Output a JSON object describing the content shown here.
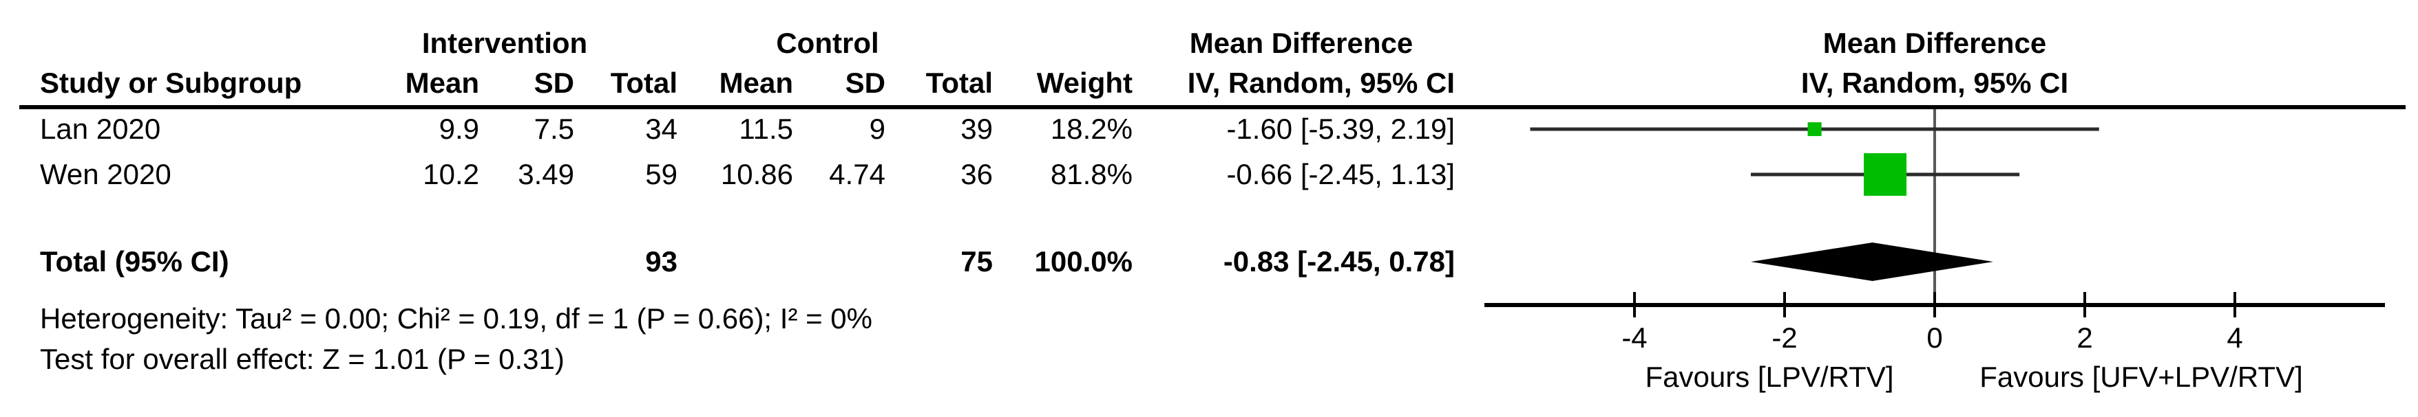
{
  "header": {
    "group_intervention": "Intervention",
    "group_control": "Control",
    "group_mean_difference": "Mean Difference",
    "col_study": "Study or Subgroup",
    "col_mean_i": "Mean",
    "col_sd_i": "SD",
    "col_total_i": "Total",
    "col_mean_c": "Mean",
    "col_sd_c": "SD",
    "col_total_c": "Total",
    "col_weight": "Weight",
    "col_ci": "IV, Random, 95% CI",
    "plot_title": "Mean Difference",
    "plot_subtitle": "IV, Random, 95% CI"
  },
  "table": {
    "rows": [
      {
        "study": "Lan 2020",
        "i_mean": "9.9",
        "i_sd": "7.5",
        "i_total": "34",
        "c_mean": "11.5",
        "c_sd": "9",
        "c_total": "39",
        "weight": "18.2%",
        "ci_text": "-1.60 [-5.39, 2.19]"
      },
      {
        "study": "Wen 2020",
        "i_mean": "10.2",
        "i_sd": "3.49",
        "i_total": "59",
        "c_mean": "10.86",
        "c_sd": "4.74",
        "c_total": "36",
        "weight": "81.8%",
        "ci_text": "-0.66 [-2.45, 1.13]"
      }
    ],
    "total_row": {
      "label": "Total (95% CI)",
      "i_total": "93",
      "c_total": "75",
      "weight": "100.0%",
      "ci_text": "-0.83 [-2.45, 0.78]"
    },
    "heterogeneity_text": "Heterogeneity: Tau² = 0.00; Chi² = 0.19, df = 1 (P = 0.66); I² = 0%",
    "overall_effect_text": "Test for overall effect: Z = 1.01 (P = 0.31)"
  },
  "chart_data": {
    "type": "scatter",
    "subtype": "forest-plot-mean-difference",
    "title": "Mean Difference",
    "subtitle": "IV, Random, 95% CI",
    "xlim": [
      -6,
      6
    ],
    "xticks": [
      -4,
      -2,
      0,
      2,
      4
    ],
    "x_axis_note_left": "Favours [LPV/RTV]",
    "x_axis_note_right": "Favours [UFV+LPV/RTV]",
    "marker_color": "#00bd00",
    "line_color": "#2b2b2b",
    "zero_line_color": "#595959",
    "studies": [
      {
        "name": "Lan 2020",
        "mean_difference": -1.6,
        "ci_low": -5.39,
        "ci_high": 2.19,
        "weight_pct": 18.2
      },
      {
        "name": "Wen 2020",
        "mean_difference": -0.66,
        "ci_low": -2.45,
        "ci_high": 1.13,
        "weight_pct": 81.8
      }
    ],
    "overall": {
      "label": "Total (95% CI)",
      "mean_difference": -0.83,
      "ci_low": -2.45,
      "ci_high": 0.78,
      "shape": "diamond",
      "color": "#000000"
    },
    "heterogeneity": {
      "tau2": 0.0,
      "chi2": 0.19,
      "df": 1,
      "p": 0.66,
      "i2_pct": 0
    },
    "overall_effect": {
      "z": 1.01,
      "p": 0.31
    }
  }
}
